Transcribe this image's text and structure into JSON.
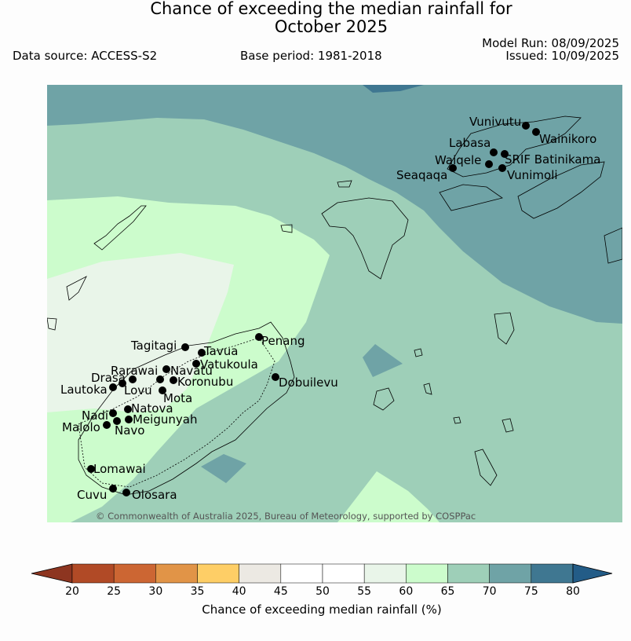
{
  "title_line1": "Chance of exceeding the median rainfall for",
  "title_line2": "October 2025",
  "data_source": "Data source: ACCESS-S2",
  "base_period": "Base period: 1981-2018",
  "model_run": "Model Run: 08/09/2025",
  "issued": "Issued: 10/09/2025",
  "copyright": "© Commonwealth of Australia 2025, Bureau of Meteorology, supported by COSPPac",
  "legend": {
    "title": "Chance of exceeding median rainfall (%)",
    "ticks": [
      "20",
      "25",
      "30",
      "35",
      "40",
      "45",
      "50",
      "55",
      "60",
      "65",
      "70",
      "75",
      "80"
    ],
    "colors": [
      "#b14a26",
      "#cc6633",
      "#e19447",
      "#fece66",
      "#ece9e3",
      "#ffffff",
      "#ffffff",
      "#e9f5e9",
      "#ccfccc",
      "#9ecfb8",
      "#6fa3a6",
      "#3f7791"
    ],
    "under_color": "#8d3520",
    "over_color": "#235c87"
  },
  "stations": [
    {
      "name": "Vunivutu"
    },
    {
      "name": "Wainikoro"
    },
    {
      "name": "Labasa"
    },
    {
      "name": "Waiqele"
    },
    {
      "name": "SRIF Batinikama"
    },
    {
      "name": "Seaqaqa"
    },
    {
      "name": "Vunimoli"
    },
    {
      "name": "Penang"
    },
    {
      "name": "Tagitagi"
    },
    {
      "name": "Tavua"
    },
    {
      "name": "Vatukoula"
    },
    {
      "name": "Rarawai"
    },
    {
      "name": "Navatu"
    },
    {
      "name": "Drasa"
    },
    {
      "name": "Koronubu"
    },
    {
      "name": "Lautoka"
    },
    {
      "name": "Lovu"
    },
    {
      "name": "Dobuilevu"
    },
    {
      "name": "Mota"
    },
    {
      "name": "Natova"
    },
    {
      "name": "Nadi"
    },
    {
      "name": "Meigunyah"
    },
    {
      "name": "Malolo"
    },
    {
      "name": "Navo"
    },
    {
      "name": "Lomawai"
    },
    {
      "name": "Cuvu"
    },
    {
      "name": "Olosara"
    }
  ]
}
